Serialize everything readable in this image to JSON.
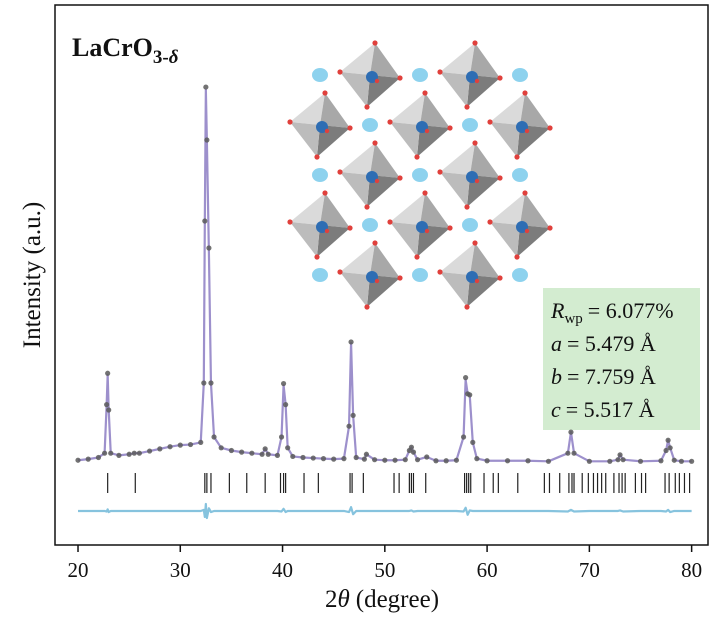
{
  "chart_data": {
    "type": "line",
    "title": {
      "main": "LaCrO",
      "sub": "3-",
      "sub_italic": "δ"
    },
    "xlabel": {
      "prefix": "2",
      "symbol": "θ",
      "text": "(degree)"
    },
    "ylabel": "Intensity (a.u.)",
    "xlim": [
      17.75,
      81.6
    ],
    "ylim": [
      0,
      100
    ],
    "xticks": [
      20,
      30,
      40,
      50,
      60,
      70,
      80
    ],
    "x": [
      20,
      21,
      22,
      22.6,
      22.8,
      22.9,
      23.0,
      23.2,
      24,
      25,
      25.5,
      26,
      27,
      28,
      29,
      30,
      31,
      32,
      32.3,
      32.4,
      32.5,
      32.6,
      32.8,
      33.0,
      33.3,
      34,
      35,
      36,
      37,
      38,
      38.3,
      38.6,
      39.5,
      39.9,
      40.1,
      40.3,
      40.5,
      41,
      42,
      43,
      44,
      45,
      46,
      46.5,
      46.7,
      46.9,
      47.2,
      48,
      48.2,
      49,
      50,
      51,
      52,
      52.4,
      52.6,
      52.8,
      53.2,
      54.1,
      55,
      56,
      57,
      57.7,
      57.9,
      58.1,
      58.3,
      58.6,
      59,
      60,
      62,
      64,
      66,
      67.9,
      68.2,
      68.5,
      70,
      72,
      72.8,
      73.0,
      73.3,
      75,
      77,
      77.5,
      77.7,
      77.9,
      78.3,
      79,
      80
    ],
    "series": [
      {
        "style": "points",
        "color": "#5a5a5a",
        "values": [
          15.7,
          15.9,
          16.2,
          17,
          26,
          31.8,
          25,
          17,
          16.6,
          16.8,
          17,
          17,
          17.4,
          17.8,
          18.2,
          18.5,
          18.6,
          19,
          30,
          60,
          84.8,
          75,
          55,
          30,
          20,
          18,
          17.5,
          17.2,
          17,
          16.8,
          17.8,
          16.8,
          16.6,
          20,
          29.9,
          26,
          18,
          16.4,
          16.2,
          16.1,
          16,
          15.9,
          16,
          22,
          37.6,
          24,
          16.2,
          15.9,
          16.8,
          15.8,
          15.7,
          15.7,
          15.8,
          17.5,
          18.1,
          17.2,
          15.8,
          16.3,
          15.6,
          15.6,
          15.7,
          20,
          31,
          28,
          27.8,
          19,
          16,
          15.6,
          15.6,
          15.6,
          15.5,
          17,
          20.9,
          17,
          15.5,
          15.5,
          15.8,
          16.7,
          15.8,
          15.5,
          15.6,
          17.5,
          19.4,
          18,
          15.7,
          15.5,
          15.5
        ]
      },
      {
        "style": "line",
        "color": "#9d90cc",
        "values": [
          15.7,
          15.9,
          16.2,
          17,
          26,
          31.5,
          25,
          17,
          16.6,
          16.8,
          17,
          17,
          17.4,
          17.8,
          18.2,
          18.5,
          18.6,
          19,
          30,
          60,
          84.3,
          75,
          54,
          30,
          20,
          18,
          17.5,
          17.2,
          17,
          16.8,
          17.8,
          16.8,
          16.6,
          20,
          29.6,
          26,
          18,
          16.4,
          16.2,
          16.1,
          16,
          15.9,
          16,
          22,
          37.4,
          24,
          16.2,
          15.9,
          16.8,
          15.8,
          15.7,
          15.7,
          15.8,
          17.5,
          18.1,
          17.2,
          15.8,
          16.3,
          15.6,
          15.6,
          15.7,
          20,
          30.6,
          28,
          27.8,
          19,
          16,
          15.6,
          15.6,
          15.6,
          15.5,
          17,
          20.9,
          17,
          15.5,
          15.5,
          15.8,
          16.7,
          15.8,
          15.5,
          15.6,
          17.5,
          19.4,
          18,
          15.7,
          15.5,
          15.5
        ]
      },
      {
        "style": "line",
        "color": "#86c3de",
        "values": [
          6.3,
          6.3,
          6.3,
          6.3,
          6.2,
          6.6,
          6.1,
          6.3,
          6.3,
          6.3,
          6.3,
          6.3,
          6.3,
          6.3,
          6.3,
          6.3,
          6.3,
          6.3,
          6.5,
          5.2,
          7.6,
          5,
          6.8,
          6.1,
          6.3,
          6.3,
          6.3,
          6.3,
          6.3,
          6.3,
          6.3,
          6.3,
          6.3,
          6.2,
          6.7,
          6.1,
          6.3,
          6.3,
          6.3,
          6.3,
          6.3,
          6.3,
          6.3,
          6.1,
          7,
          5.7,
          6.3,
          6.3,
          6.3,
          6.3,
          6.3,
          6.3,
          6.3,
          6.3,
          6.4,
          6.2,
          6.3,
          6.3,
          6.3,
          6.3,
          6.3,
          6.2,
          6.9,
          5.6,
          6.4,
          6.3,
          6.3,
          6.3,
          6.3,
          6.3,
          6.3,
          6.2,
          6.5,
          6.2,
          6.3,
          6.3,
          6.3,
          6.4,
          6.2,
          6.3,
          6.3,
          6.2,
          6.5,
          6.1,
          6.3,
          6.3,
          6.3
        ]
      }
    ],
    "bragg": {
      "color": "#222222",
      "positions": [
        22.9,
        25.6,
        32.4,
        32.6,
        33.0,
        34.8,
        36.5,
        38.3,
        39.8,
        40.1,
        40.3,
        42.1,
        43.5,
        46.6,
        46.8,
        47.9,
        50.9,
        51.4,
        52.4,
        52.6,
        52.8,
        54.0,
        57.8,
        58.0,
        58.2,
        58.4,
        59.7,
        60.6,
        61.1,
        63.0,
        65.6,
        66.1,
        67.1,
        68.0,
        68.3,
        68.5,
        69.3,
        69.9,
        70.4,
        70.8,
        71.2,
        71.6,
        72.4,
        72.9,
        73.2,
        73.5,
        74.5,
        75.1,
        75.5,
        77.4,
        77.8,
        78.4,
        78.8,
        79.3,
        79.8
      ]
    },
    "annotations": [
      {
        "symbol": "R",
        "sub": "wp",
        "text": "= 6.077%"
      },
      {
        "symbol": "a",
        "text": "= 5.479 Å"
      },
      {
        "symbol": "b",
        "text": "= 7.759 Å"
      },
      {
        "symbol": "c",
        "text": "= 5.517 Å"
      }
    ],
    "annotation_box_color": "#d3ecd0"
  }
}
